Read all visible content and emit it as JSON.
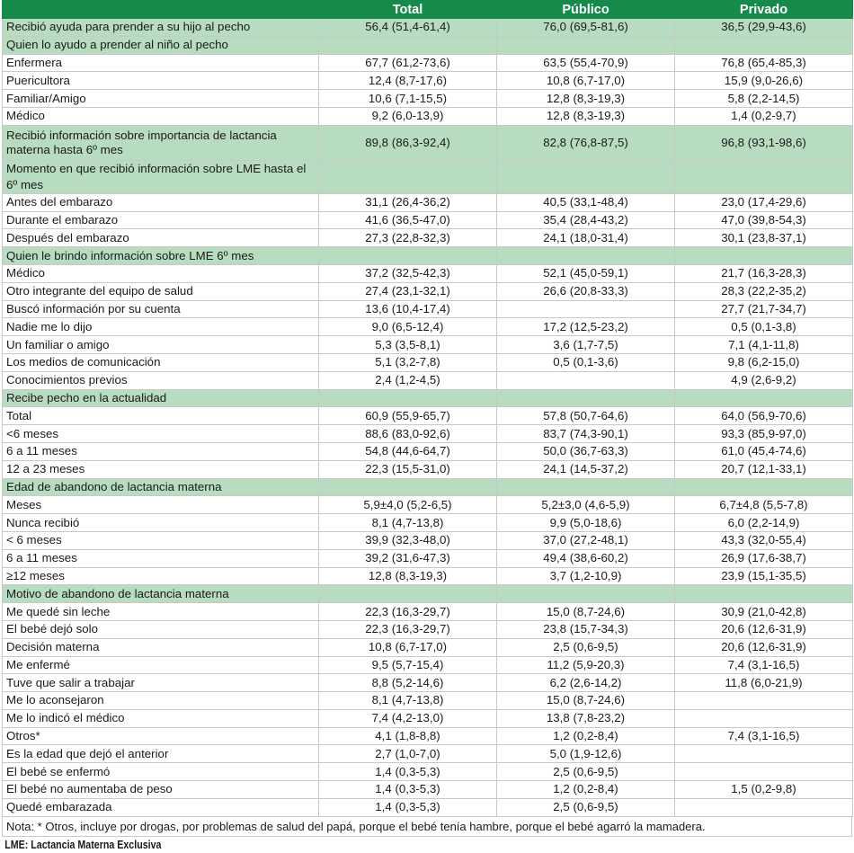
{
  "header": {
    "label": "",
    "total": "Total",
    "publico": "Público",
    "privado": "Privado"
  },
  "rows": [
    {
      "type": "section",
      "label": "Recibió ayuda para prender a su hijo al pecho",
      "total": "56,4 (51,4-61,4)",
      "publico": "76,0 (69,5-81,6)",
      "privado": "36,5 (29,9-43,6)"
    },
    {
      "type": "section",
      "label": "Quien lo ayudo a prender al niño al pecho",
      "total": "",
      "publico": "",
      "privado": ""
    },
    {
      "type": "row",
      "label": "Enfermera",
      "total": "67,7 (61,2-73,6)",
      "publico": "63,5 (55,4-70,9)",
      "privado": "76,8 (65,4-85,3)"
    },
    {
      "type": "row",
      "label": "Puericultora",
      "total": "12,4 (8,7-17,6)",
      "publico": "10,8 (6,7-17,0)",
      "privado": "15,9 (9,0-26,6)"
    },
    {
      "type": "row",
      "label": "Familiar/Amigo",
      "total": "10,6 (7,1-15,5)",
      "publico": "12,8 (8,3-19,3)",
      "privado": "5,8 (2,2-14,5)"
    },
    {
      "type": "row",
      "label": "Médico",
      "total": "9,2 (6,0-13,9)",
      "publico": "12,8 (8,3-19,3)",
      "privado": "1,4 (0,2-9,7)"
    },
    {
      "type": "section-tall",
      "label": "Recibió información sobre importancia de lactancia materna hasta 6º mes",
      "total": "89,8 (86,3-92,4)",
      "publico": "82,8 (76,8-87,5)",
      "privado": "96,8 (93,1-98,6)"
    },
    {
      "type": "section",
      "label": "Momento en que recibió información sobre LME hasta el 6º mes",
      "total": "",
      "publico": "",
      "privado": ""
    },
    {
      "type": "row",
      "label": "Antes del embarazo",
      "total": "31,1 (26,4-36,2)",
      "publico": "40,5 (33,1-48,4)",
      "privado": "23,0 (17,4-29,6)"
    },
    {
      "type": "row",
      "label": "Durante el embarazo",
      "total": "41,6 (36,5-47,0)",
      "publico": "35,4 (28,4-43,2)",
      "privado": "47,0 (39,8-54,3)"
    },
    {
      "type": "row",
      "label": "Después del embarazo",
      "total": "27,3 (22,8-32,3)",
      "publico": "24,1 (18,0-31,4)",
      "privado": "30,1 (23,8-37,1)"
    },
    {
      "type": "section",
      "label": "Quien le brindo información sobre LME 6º mes",
      "total": "",
      "publico": "",
      "privado": ""
    },
    {
      "type": "row",
      "label": "Médico",
      "total": "37,2 (32,5-42,3)",
      "publico": "52,1 (45,0-59,1)",
      "privado": "21,7 (16,3-28,3)"
    },
    {
      "type": "row",
      "label": "Otro integrante del equipo de salud",
      "total": "27,4 (23,1-32,1)",
      "publico": "26,6 (20,8-33,3)",
      "privado": "28,3 (22,2-35,2)"
    },
    {
      "type": "row",
      "label": "Buscó información por su cuenta",
      "total": "13,6 (10,4-17,4)",
      "publico": "",
      "privado": "27,7 (21,7-34,7)"
    },
    {
      "type": "row",
      "label": "Nadie me lo dijo",
      "total": "9,0 (6,5-12,4)",
      "publico": "17,2 (12,5-23,2)",
      "privado": "0,5 (0,1-3,8)"
    },
    {
      "type": "row",
      "label": "Un familiar o amigo",
      "total": "5,3 (3,5-8,1)",
      "publico": "3,6 (1,7-7,5)",
      "privado": "7,1 (4,1-11,8)"
    },
    {
      "type": "row",
      "label": "Los medios de comunicación",
      "total": "5,1 (3,2-7,8)",
      "publico": "0,5 (0,1-3,6)",
      "privado": "9,8 (6,2-15,0)"
    },
    {
      "type": "row",
      "label": "Conocimientos previos",
      "total": "2,4 (1,2-4,5)",
      "publico": "",
      "privado": "4,9 (2,6-9,2)"
    },
    {
      "type": "section",
      "label": "Recibe pecho en la actualidad",
      "total": "",
      "publico": "",
      "privado": ""
    },
    {
      "type": "row",
      "label": "Total",
      "total": "60,9 (55,9-65,7)",
      "publico": "57,8 (50,7-64,6)",
      "privado": "64,0 (56,9-70,6)"
    },
    {
      "type": "row",
      "label": "<6 meses",
      "total": "88,6 (83,0-92,6)",
      "publico": "83,7 (74,3-90,1)",
      "privado": "93,3 (85,9-97,0)"
    },
    {
      "type": "row",
      "label": "6 a 11 meses",
      "total": "54,8 (44,6-64,7)",
      "publico": "50,0 (36,7-63,3)",
      "privado": "61,0 (45,4-74,6)"
    },
    {
      "type": "row",
      "label": "12 a 23 meses",
      "total": "22,3 (15,5-31,0)",
      "publico": "24,1 (14,5-37,2)",
      "privado": "20,7 (12,1-33,1)"
    },
    {
      "type": "section",
      "label": "Edad de abandono de lactancia materna",
      "total": "",
      "publico": "",
      "privado": ""
    },
    {
      "type": "row",
      "label": "Meses",
      "total": "5,9±4,0 (5,2-6,5)",
      "publico": "5,2±3,0 (4,6-5,9)",
      "privado": "6,7±4,8 (5,5-7,8)"
    },
    {
      "type": "row",
      "label": "Nunca recibió",
      "total": "8,1 (4,7-13,8)",
      "publico": "9,9 (5,0-18,6)",
      "privado": "6,0 (2,2-14,9)"
    },
    {
      "type": "row",
      "label": "< 6 meses",
      "total": "39,9 (32,3-48,0)",
      "publico": "37,0 (27,2-48,1)",
      "privado": "43,3 (32,0-55,4)"
    },
    {
      "type": "row",
      "label": "6 a 11 meses",
      "total": "39,2 (31,6-47,3)",
      "publico": "49,4 (38,6-60,2)",
      "privado": "26,9 (17,6-38,7)"
    },
    {
      "type": "row",
      "label": "≥12 meses",
      "total": "12,8 (8,3-19,3)",
      "publico": "3,7 (1,2-10,9)",
      "privado": "23,9 (15,1-35,5)"
    },
    {
      "type": "section",
      "label": "Motivo de abandono de lactancia materna",
      "total": "",
      "publico": "",
      "privado": ""
    },
    {
      "type": "row",
      "label": "Me quedé sin leche",
      "total": "22,3 (16,3-29,7)",
      "publico": "15,0 (8,7-24,6)",
      "privado": "30,9 (21,0-42,8)"
    },
    {
      "type": "row",
      "label": "El bebé dejó solo",
      "total": "22,3 (16,3-29,7)",
      "publico": "23,8 (15,7-34,3)",
      "privado": "20,6 (12,6-31,9)"
    },
    {
      "type": "row",
      "label": "Decisión materna",
      "total": "10,8 (6,7-17,0)",
      "publico": "2,5 (0,6-9,5)",
      "privado": "20,6 (12,6-31,9)"
    },
    {
      "type": "row",
      "label": "Me enfermé",
      "total": "9,5 (5,7-15,4)",
      "publico": "11,2 (5,9-20,3)",
      "privado": "7,4 (3,1-16,5)"
    },
    {
      "type": "row",
      "label": "Tuve que salir a trabajar",
      "total": "8,8 (5,2-14,6)",
      "publico": "6,2 (2,6-14,2)",
      "privado": "11,8 (6,0-21,9)"
    },
    {
      "type": "row",
      "label": "Me lo aconsejaron",
      "total": "8,1 (4,7-13,8)",
      "publico": "15,0 (8,7-24,6)",
      "privado": ""
    },
    {
      "type": "row",
      "label": "Me lo indicó el médico",
      "total": "7,4 (4,2-13,0)",
      "publico": "13,8 (7,8-23,2)",
      "privado": ""
    },
    {
      "type": "row",
      "label": "Otros*",
      "total": "4,1 (1,8-8,8)",
      "publico": "1,2 (0,2-8,4)",
      "privado": "7,4 (3,1-16,5)"
    },
    {
      "type": "row",
      "label": "Es la edad que dejó el anterior",
      "total": "2,7 (1,0-7,0)",
      "publico": "5,0 (1,9-12,6)",
      "privado": ""
    },
    {
      "type": "row",
      "label": "El bebé se enfermó",
      "total": "1,4 (0,3-5,3)",
      "publico": "2,5 (0,6-9,5)",
      "privado": ""
    },
    {
      "type": "row",
      "label": "El bebé no aumentaba de peso",
      "total": "1,4 (0,3-5,3)",
      "publico": "1,2 (0,2-8,4)",
      "privado": "1,5 (0,2-9,8)"
    },
    {
      "type": "row",
      "label": "Quedé embarazada",
      "total": "1,4 (0,3-5,3)",
      "publico": "2,5 (0,6-9,5)",
      "privado": ""
    }
  ],
  "note": "Nota: * Otros, incluye por drogas, por problemas de salud del papá, porque el bebé tenía hambre, porque el bebé agarró la mamadera.",
  "footnote": "LME: Lactancia Materna Exclusiva",
  "colors": {
    "header_bg": "#168a4a",
    "section_bg": "#b8dcc0",
    "border": "#c9c9c9"
  }
}
